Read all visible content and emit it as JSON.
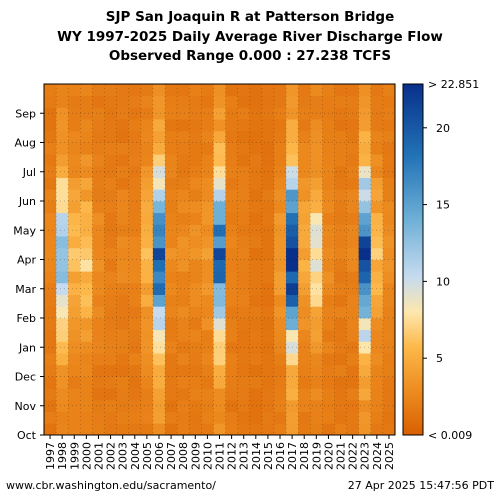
{
  "chart_data": {
    "type": "heatmap",
    "title": "SJP San Joaquin R at Patterson Bridge",
    "subtitle": "WY 1997-2025 Daily Average River Discharge Flow",
    "subtitle2": "Observed Range 0.000 : 27.238 TCFS",
    "x_tick_labels": [
      "1997",
      "1998",
      "1999",
      "2000",
      "2001",
      "2002",
      "2003",
      "2004",
      "2005",
      "2006",
      "2007",
      "2008",
      "2009",
      "2010",
      "2011",
      "2012",
      "2013",
      "2014",
      "2015",
      "2016",
      "2017",
      "2018",
      "2019",
      "2020",
      "2021",
      "2022",
      "2023",
      "2024",
      "2025"
    ],
    "y_tick_labels": [
      "Oct",
      "Nov",
      "Dec",
      "Jan",
      "Feb",
      "Mar",
      "Apr",
      "May",
      "Jun",
      "Jul",
      "Aug",
      "Sep"
    ],
    "colorbar": {
      "ticks": [
        5,
        10,
        15,
        20
      ],
      "top_label": "> 22.851",
      "bottom_label": "< 0.009",
      "range": [
        0.009,
        22.851
      ]
    },
    "grid": true,
    "annual_peak_flow_tcfs": [
      2.5,
      14,
      6,
      7,
      3,
      2,
      2.5,
      2.5,
      6,
      22,
      3,
      3,
      3,
      4,
      20,
      2.5,
      2,
      1.5,
      1.5,
      4,
      25,
      5,
      9,
      3,
      2,
      2.5,
      22,
      6,
      3
    ]
  },
  "footer": {
    "url": "www.cbr.washington.edu/sacramento/",
    "timestamp": "27 Apr 2025 15:47:56 PDT"
  }
}
